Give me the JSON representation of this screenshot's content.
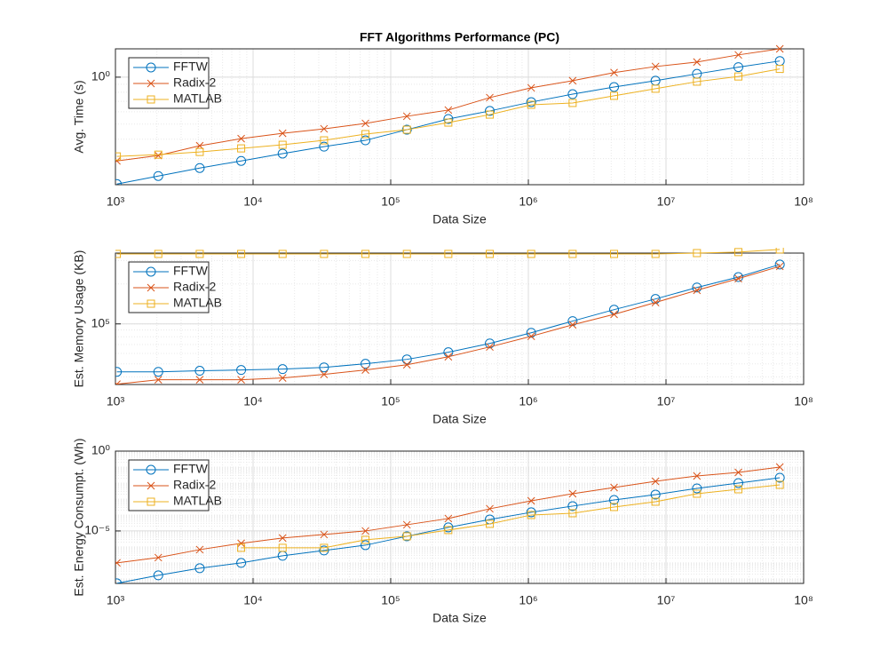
{
  "chart_data": [
    {
      "type": "line",
      "title": "FFT Algorithms Performance (PC)",
      "xlabel": "Data Size",
      "ylabel": "Avg. Time (s)",
      "xscale": "log",
      "yscale": "log",
      "grid": true,
      "legend": "upper left",
      "x": [
        1024,
        2048,
        4096,
        8192,
        16384,
        32768,
        65536,
        131072,
        262144,
        524288,
        1048576,
        2097152,
        4194304,
        8388608,
        16777216,
        33554432,
        67108864
      ],
      "xlim": [
        1000,
        100000000
      ],
      "xticks": [
        {
          "value": 1000,
          "label": "10³"
        },
        {
          "value": 10000,
          "label": "10⁴"
        },
        {
          "value": 100000,
          "label": "10⁵"
        },
        {
          "value": 1000000,
          "label": "10⁶"
        },
        {
          "value": 10000000,
          "label": "10⁷"
        },
        {
          "value": 100000000,
          "label": "10⁸"
        }
      ],
      "ylim": [
        0.204,
        1.52
      ],
      "yticks": [
        {
          "value": 1,
          "label": "10⁰"
        }
      ],
      "series": [
        {
          "name": "FFTW",
          "color": "#0072bd",
          "marker": "circle",
          "values": [
            0.206,
            0.232,
            0.261,
            0.29,
            0.323,
            0.358,
            0.393,
            0.46,
            0.539,
            0.607,
            0.692,
            0.778,
            0.865,
            0.949,
            1.05,
            1.16,
            1.27
          ]
        },
        {
          "name": "Radix-2",
          "color": "#d95319",
          "marker": "cross",
          "values": [
            0.29,
            0.314,
            0.363,
            0.403,
            0.436,
            0.466,
            0.505,
            0.561,
            0.615,
            0.739,
            0.854,
            0.949,
            1.07,
            1.17,
            1.25,
            1.39,
            1.52
          ]
        },
        {
          "name": "MATLAB",
          "color": "#edb120",
          "marker": "square",
          "values": [
            0.31,
            0.318,
            0.331,
            0.349,
            0.368,
            0.393,
            0.431,
            0.46,
            0.511,
            0.575,
            0.665,
            0.683,
            0.759,
            0.843,
            0.936,
            1.01,
            1.13
          ]
        }
      ]
    },
    {
      "type": "line",
      "xlabel": "Data Size",
      "ylabel": "Est. Memory Usage (KB)",
      "xscale": "log",
      "yscale": "log",
      "grid": true,
      "legend": "upper left",
      "x": [
        1024,
        2048,
        4096,
        8192,
        16384,
        32768,
        65536,
        131072,
        262144,
        524288,
        1048576,
        2097152,
        4194304,
        8388608,
        16777216,
        33554432,
        67108864
      ],
      "xlim": [
        1000,
        100000000
      ],
      "xticks": [
        {
          "value": 1000,
          "label": "10³"
        },
        {
          "value": 10000,
          "label": "10⁴"
        },
        {
          "value": 100000,
          "label": "10⁵"
        },
        {
          "value": 1000000,
          "label": "10⁶"
        },
        {
          "value": 10000000,
          "label": "10⁷"
        },
        {
          "value": 100000000,
          "label": "10⁸"
        }
      ],
      "ylim": [
        35000,
        341000
      ],
      "yticks": [
        {
          "value": 100000,
          "label": "10⁵"
        }
      ],
      "series": [
        {
          "name": "FFTW",
          "color": "#0072bd",
          "marker": "circle",
          "values": [
            43600,
            43600,
            44400,
            45000,
            45700,
            47100,
            50100,
            54100,
            61200,
            71300,
            85800,
            105000,
            128000,
            154000,
            188000,
            225000,
            280000
          ]
        },
        {
          "name": "Radix-2",
          "color": "#d95319",
          "marker": "cross",
          "values": [
            35200,
            38000,
            38000,
            38000,
            39200,
            41700,
            45000,
            49300,
            56600,
            67100,
            80700,
            98500,
            118000,
            145000,
            179000,
            219000,
            271000
          ]
        },
        {
          "name": "MATLAB",
          "color": "#edb120",
          "marker": "square",
          "values": [
            336000,
            336000,
            336000,
            336000,
            336000,
            336000,
            336000,
            336000,
            336000,
            336000,
            336000,
            336000,
            336000,
            336000,
            341000,
            347000,
            363000
          ]
        }
      ]
    },
    {
      "type": "line",
      "xlabel": "Data Size",
      "ylabel": "Est. Energy Consumpt. (Wh)",
      "xscale": "log",
      "yscale": "log",
      "grid": true,
      "legend": "upper left",
      "x": [
        1024,
        2048,
        4096,
        8192,
        16384,
        32768,
        65536,
        131072,
        262144,
        524288,
        1048576,
        2097152,
        4194304,
        8388608,
        16777216,
        33554432,
        67108864
      ],
      "xlim": [
        1000,
        100000000
      ],
      "xticks": [
        {
          "value": 1000,
          "label": "10³"
        },
        {
          "value": 10000,
          "label": "10⁴"
        },
        {
          "value": 100000,
          "label": "10⁵"
        },
        {
          "value": 1000000,
          "label": "10⁶"
        },
        {
          "value": 10000000,
          "label": "10⁷"
        },
        {
          "value": 100000000,
          "label": "10⁸"
        }
      ],
      "ylim": [
        5.2e-09,
        1
      ],
      "yticks": [
        {
          "value": 1e-05,
          "label": "10⁻⁵"
        },
        {
          "value": 1,
          "label": "10⁰"
        }
      ],
      "series": [
        {
          "name": "FFTW",
          "color": "#0072bd",
          "marker": "circle",
          "values": [
            5.27e-09,
            1.67e-08,
            4.64e-08,
            1e-07,
            2.78e-07,
            6e-07,
            1.29e-06,
            4.64e-06,
            1.67e-05,
            5.27e-05,
            0.000147,
            0.00036,
            0.00088,
            0.0019,
            0.00464,
            0.01,
            0.0215
          ]
        },
        {
          "name": "Radix-2",
          "color": "#d95319",
          "marker": "cross",
          "values": [
            1e-07,
            2.15e-07,
            6.8e-07,
            1.67e-06,
            3.6e-06,
            6e-06,
            1e-05,
            2.45e-05,
            6e-05,
            0.000245,
            0.000774,
            0.00215,
            0.00527,
            0.0129,
            0.0278,
            0.0464,
            0.1
          ]
        },
        {
          "name": "MATLAB",
          "color": "#edb120",
          "marker": "square",
          "values": [
            null,
            null,
            null,
            8.8e-07,
            8.8e-07,
            8.8e-07,
            2.78e-06,
            4.64e-06,
            1.14e-05,
            2.78e-05,
            0.0001,
            0.000129,
            0.000316,
            0.00068,
            0.00215,
            0.00408,
            0.00774
          ]
        }
      ]
    }
  ]
}
